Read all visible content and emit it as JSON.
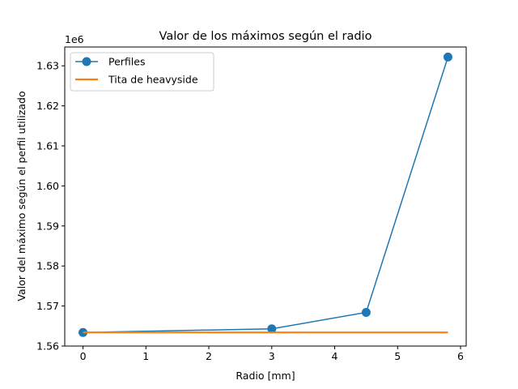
{
  "chart_data": {
    "type": "line",
    "title": "Valor de los máximos según el radio",
    "xlabel": "Radio [mm]",
    "ylabel": "Valor del máximo según el perfil utilizado",
    "y_offset_label": "1e6",
    "xlim": [
      -0.29,
      6.09
    ],
    "ylim": [
      1.56,
      1.6347
    ],
    "x_ticks": [
      0,
      1,
      2,
      3,
      4,
      5,
      6
    ],
    "x_tick_labels": [
      "0",
      "1",
      "2",
      "3",
      "4",
      "5",
      "6"
    ],
    "y_ticks": [
      1.56,
      1.57,
      1.58,
      1.59,
      1.6,
      1.61,
      1.62,
      1.63
    ],
    "y_tick_labels": [
      "1.56",
      "1.57",
      "1.58",
      "1.59",
      "1.60",
      "1.61",
      "1.62",
      "1.63"
    ],
    "grid": false,
    "legend_position": "top-left",
    "series": [
      {
        "name": "Perfiles",
        "color": "#1f77b4",
        "marker": "circle",
        "x": [
          0,
          3,
          4.5,
          5.8
        ],
        "y": [
          1.5634,
          1.5643,
          1.5684,
          1.6322
        ]
      },
      {
        "name": "Tita de heavyside",
        "color": "#ff7f0e",
        "marker": "none",
        "x": [
          0,
          5.8
        ],
        "y": [
          1.5634,
          1.5634
        ]
      }
    ]
  }
}
